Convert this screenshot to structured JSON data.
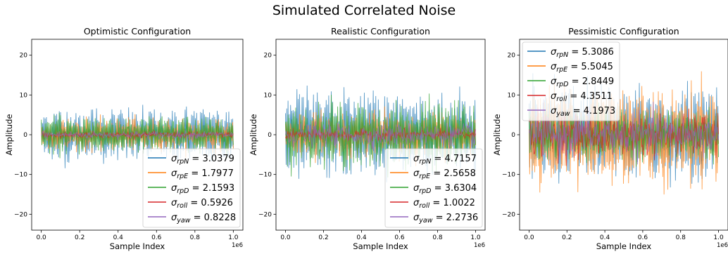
{
  "figure": {
    "suptitle": "Simulated Correlated Noise",
    "x_offset_label": "1e6"
  },
  "chart_data": [
    {
      "type": "line",
      "title": "Optimistic Configuration",
      "xlabel": "Sample Index",
      "ylabel": "Amplitude",
      "xlim": [
        -0.05,
        1.05
      ],
      "ylim": [
        -24,
        24
      ],
      "x_ticks": [
        "0.0",
        "0.2",
        "0.4",
        "0.6",
        "0.8",
        "1.0"
      ],
      "y_ticks": [
        "-20",
        "-10",
        "0",
        "10",
        "20"
      ],
      "x_scale_multiplier": "1e6",
      "legend_position": "lower-right",
      "grid": false,
      "series": [
        {
          "name": "σ_rpN",
          "label_sub": "rpN",
          "value": "3.0379",
          "sigma": 3.0379,
          "color": "#1f77b4"
        },
        {
          "name": "σ_rpE",
          "label_sub": "rpE",
          "value": "1.7977",
          "sigma": 1.7977,
          "color": "#ff7f0e"
        },
        {
          "name": "σ_rpD",
          "label_sub": "rpD",
          "value": "2.1593",
          "sigma": 2.1593,
          "color": "#2ca02c"
        },
        {
          "name": "σ_roll",
          "label_sub": "roll",
          "value": "0.5926",
          "sigma": 0.5926,
          "color": "#d62728"
        },
        {
          "name": "σ_yaw",
          "label_sub": "yaw",
          "value": "0.8228",
          "sigma": 0.8228,
          "color": "#9467bd"
        }
      ]
    },
    {
      "type": "line",
      "title": "Realistic Configuration",
      "xlabel": "Sample Index",
      "ylabel": "Amplitude",
      "xlim": [
        -0.05,
        1.05
      ],
      "ylim": [
        -24,
        24
      ],
      "x_ticks": [
        "0.0",
        "0.2",
        "0.4",
        "0.6",
        "0.8",
        "1.0"
      ],
      "y_ticks": [
        "-20",
        "-10",
        "0",
        "10",
        "20"
      ],
      "x_scale_multiplier": "1e6",
      "legend_position": "lower-right",
      "grid": false,
      "series": [
        {
          "name": "σ_rpN",
          "label_sub": "rpN",
          "value": "4.7157",
          "sigma": 4.7157,
          "color": "#1f77b4"
        },
        {
          "name": "σ_rpE",
          "label_sub": "rpE",
          "value": "2.5658",
          "sigma": 2.5658,
          "color": "#ff7f0e"
        },
        {
          "name": "σ_rpD",
          "label_sub": "rpD",
          "value": "3.6304",
          "sigma": 3.6304,
          "color": "#2ca02c"
        },
        {
          "name": "σ_roll",
          "label_sub": "roll",
          "value": "1.0022",
          "sigma": 1.0022,
          "color": "#d62728"
        },
        {
          "name": "σ_yaw",
          "label_sub": "yaw",
          "value": "2.2736",
          "sigma": 2.2736,
          "color": "#9467bd"
        }
      ]
    },
    {
      "type": "line",
      "title": "Pessimistic Configuration",
      "xlabel": "Sample Index",
      "ylabel": "Amplitude",
      "xlim": [
        -0.05,
        1.05
      ],
      "ylim": [
        -24,
        24
      ],
      "x_ticks": [
        "0.0",
        "0.2",
        "0.4",
        "0.6",
        "0.8",
        "1.0"
      ],
      "y_ticks": [
        "-20",
        "-10",
        "0",
        "10",
        "20"
      ],
      "x_scale_multiplier": "1e6",
      "legend_position": "upper-left",
      "grid": false,
      "series": [
        {
          "name": "σ_rpN",
          "label_sub": "rpN",
          "value": "5.3086",
          "sigma": 5.3086,
          "color": "#1f77b4"
        },
        {
          "name": "σ_rpE",
          "label_sub": "rpE",
          "value": "5.5045",
          "sigma": 5.5045,
          "color": "#ff7f0e"
        },
        {
          "name": "σ_rpD",
          "label_sub": "rpD",
          "value": "2.8449",
          "sigma": 2.8449,
          "color": "#2ca02c"
        },
        {
          "name": "σ_roll",
          "label_sub": "roll",
          "value": "4.3511",
          "sigma": 4.3511,
          "color": "#d62728"
        },
        {
          "name": "σ_yaw",
          "label_sub": "yaw",
          "value": "4.1973",
          "sigma": 4.1973,
          "color": "#9467bd"
        }
      ]
    }
  ]
}
